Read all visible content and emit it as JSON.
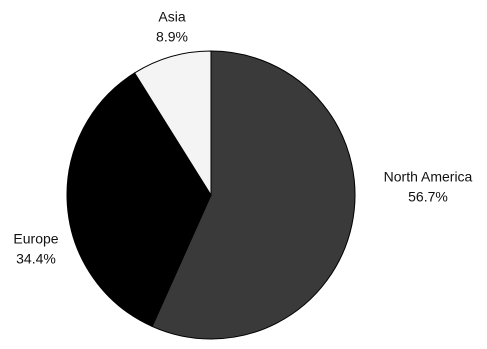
{
  "chart_data": {
    "type": "pie",
    "categories": [
      "North America",
      "Europe",
      "Asia"
    ],
    "values": [
      56.7,
      34.4,
      8.9
    ],
    "value_labels": [
      "56.7%",
      "34.4%",
      "8.9%"
    ],
    "colors": [
      "#3a3a3a",
      "#000000",
      "#f4f4f4"
    ]
  }
}
